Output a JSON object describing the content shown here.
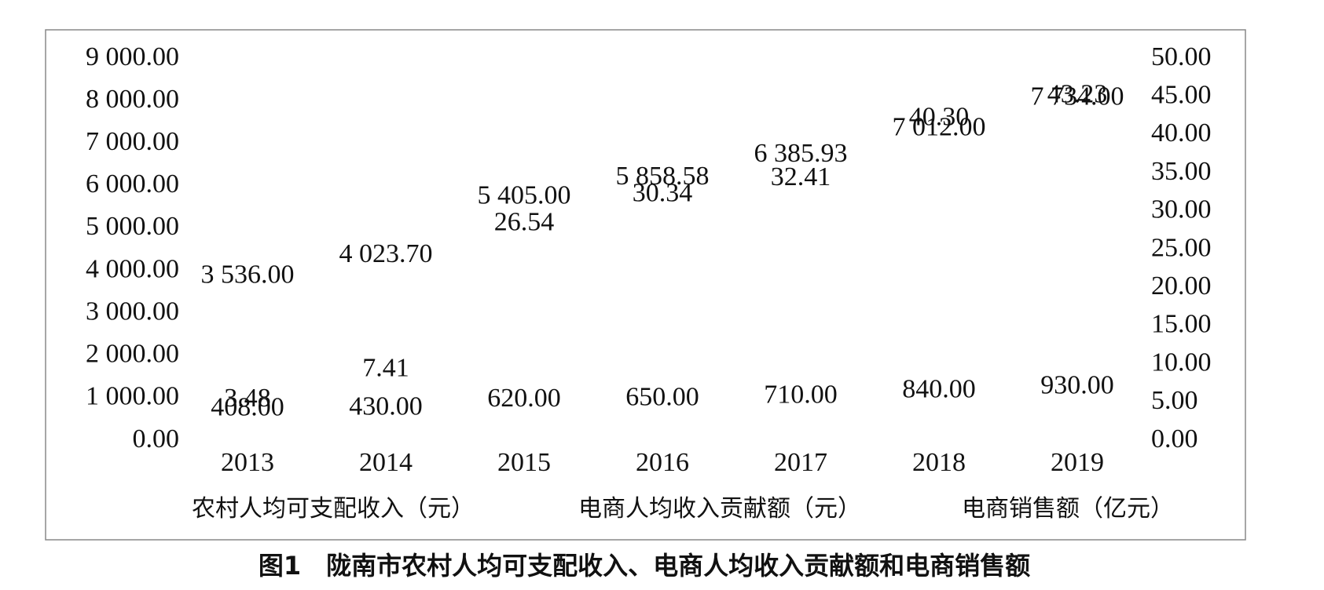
{
  "chart_data": {
    "type": "line",
    "categories": [
      "2013",
      "2014",
      "2015",
      "2016",
      "2017",
      "2018",
      "2019"
    ],
    "series": [
      {
        "name": "农村人均可支配收入（元）",
        "color": "#000000",
        "values": [
          3536,
          4023.7,
          5405,
          5858.58,
          6385.93,
          7012,
          7734
        ],
        "value_labels": [
          "3 536.00",
          "4 023.70",
          "5 405.00",
          "5 858.58",
          "6 385.93",
          "7 012.00",
          "7 734.00"
        ]
      },
      {
        "name": "电商人均收入贡献额（元）",
        "color": "#000000",
        "values": [
          408,
          430,
          620,
          650,
          710,
          840,
          930
        ],
        "value_labels": [
          "408.00",
          "430.00",
          "620.00",
          "650.00",
          "710.00",
          "840.00",
          "930.00"
        ]
      },
      {
        "name": "电商销售额（亿元）",
        "color": "#000000",
        "axis": "y2",
        "values": [
          3.48,
          7.41,
          26.54,
          30.34,
          32.41,
          40.3,
          43.23
        ],
        "value_labels": [
          "3.48",
          "7.41",
          "26.54",
          "30.34",
          "32.41",
          "40.30",
          "43.23"
        ]
      }
    ],
    "ylim": [
      0,
      9000
    ],
    "yticks": [
      {
        "value": 0,
        "label": "0.00"
      },
      {
        "value": 1000,
        "label": "1 000.00"
      },
      {
        "value": 2000,
        "label": "2 000.00"
      },
      {
        "value": 3000,
        "label": "3 000.00"
      },
      {
        "value": 4000,
        "label": "4 000.00"
      },
      {
        "value": 5000,
        "label": "5 000.00"
      },
      {
        "value": 6000,
        "label": "6 000.00"
      },
      {
        "value": 7000,
        "label": "7 000.00"
      },
      {
        "value": 8000,
        "label": "8 000.00"
      },
      {
        "value": 9000,
        "label": "9 000.00"
      }
    ],
    "y2lim": [
      0,
      50
    ],
    "y2ticks": [
      {
        "value": 0,
        "label": "0.00"
      },
      {
        "value": 5,
        "label": "5.00"
      },
      {
        "value": 10,
        "label": "10.00"
      },
      {
        "value": 15,
        "label": "15.00"
      },
      {
        "value": 20,
        "label": "20.00"
      },
      {
        "value": 25,
        "label": "25.00"
      },
      {
        "value": 30,
        "label": "30.00"
      },
      {
        "value": 35,
        "label": "35.00"
      },
      {
        "value": 40,
        "label": "40.00"
      },
      {
        "value": 45,
        "label": "45.00"
      },
      {
        "value": 50,
        "label": "50.00"
      }
    ],
    "legend": "bottom",
    "title": "图1　陇南市农村人均可支配收入、电商人均收入贡献额和电商销售额"
  }
}
